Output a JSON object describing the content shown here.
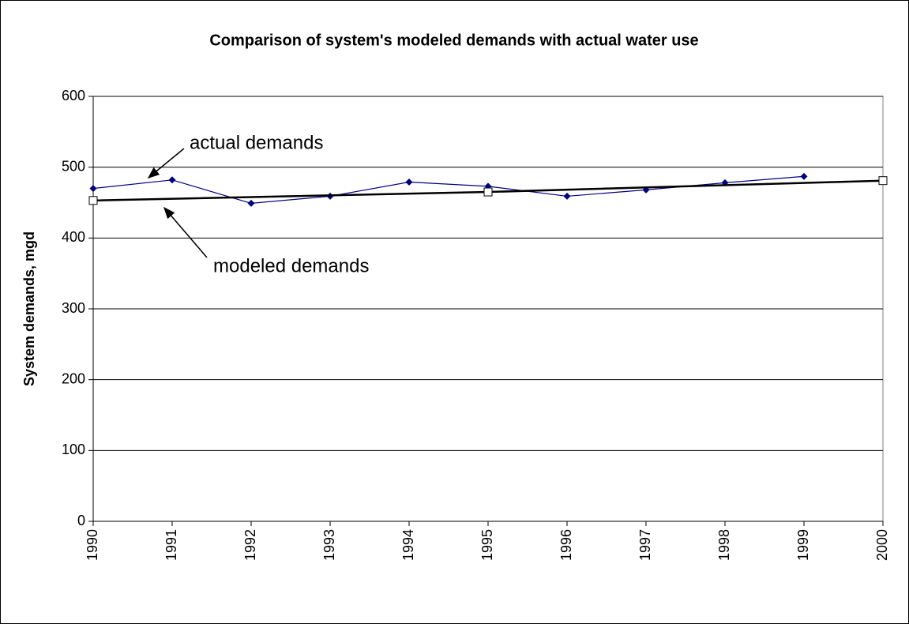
{
  "chart_data": {
    "type": "line",
    "title": "Comparison of system's modeled demands with actual water use",
    "y_label": "System demands, mgd",
    "xlim": [
      1990,
      2000
    ],
    "xticks": [
      1990,
      1991,
      1992,
      1993,
      1994,
      1995,
      1996,
      1997,
      1998,
      1999,
      2000
    ],
    "ylim": [
      0,
      600
    ],
    "yticks": [
      0,
      100,
      200,
      300,
      400,
      500,
      600
    ],
    "grid": true,
    "series": [
      {
        "name": "actual demands",
        "color": "#000080",
        "marker": "diamond",
        "x": [
          1990,
          1991,
          1992,
          1993,
          1994,
          1995,
          1996,
          1997,
          1998,
          1999
        ],
        "values": [
          470,
          482,
          449,
          459,
          479,
          473,
          459,
          468,
          478,
          487
        ]
      },
      {
        "name": "modeled demands",
        "color": "#000000",
        "marker": "square",
        "x": [
          1990,
          1995,
          2000
        ],
        "values": [
          453,
          465,
          481
        ]
      }
    ],
    "annotations": [
      "actual demands",
      "modeled demands"
    ]
  }
}
